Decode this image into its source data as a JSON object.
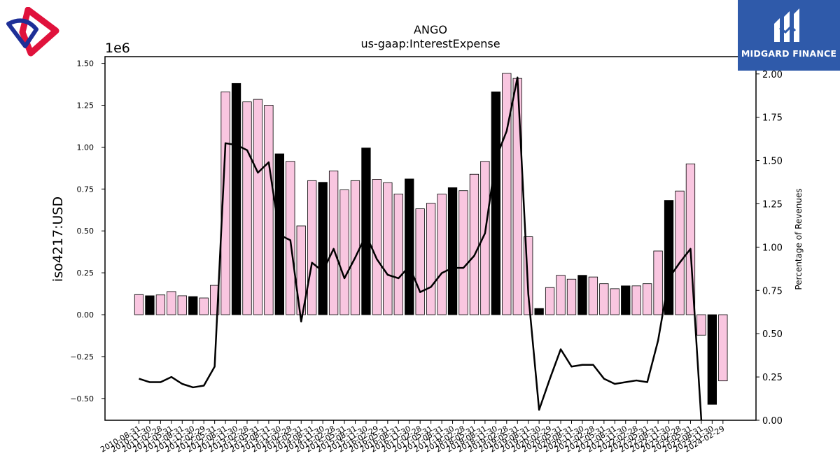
{
  "chart_data": {
    "type": "bar",
    "title": "ANGO",
    "subtitle": "us-gaap:InterestExpense",
    "ylabel": "iso4217:USD",
    "y2label": "Percentage of Revenues",
    "offset_label": "1e6",
    "ylim": [
      -0.63,
      1.54
    ],
    "y2lim": [
      0.0,
      2.1
    ],
    "yticks": [
      "1.50",
      "1.25",
      "1.00",
      "0.75",
      "0.50",
      "0.25",
      "0.00",
      "−0.25",
      "−0.50"
    ],
    "y2ticks": [
      "2.00",
      "1.75",
      "1.50",
      "1.25",
      "1.00",
      "0.75",
      "0.50",
      "0.25",
      "0.00"
    ],
    "categories": [
      "2010-08-31",
      "2010-11-30",
      "2011-02-28",
      "2011-05-31",
      "2011-08-31",
      "2011-11-30",
      "2012-02-29",
      "2012-05-31",
      "2012-08-31",
      "2012-11-30",
      "2013-02-28",
      "2013-05-31",
      "2013-08-31",
      "2013-11-30",
      "2014-02-28",
      "2014-05-31",
      "2014-08-31",
      "2014-11-30",
      "2015-02-28",
      "2015-05-31",
      "2015-08-31",
      "2015-11-30",
      "2016-02-29",
      "2016-05-31",
      "2016-08-31",
      "2016-11-30",
      "2017-02-28",
      "2017-05-31",
      "2017-08-31",
      "2017-11-30",
      "2018-02-28",
      "2018-05-31",
      "2018-08-31",
      "2018-11-30",
      "2019-02-28",
      "2019-05-31",
      "2019-08-31",
      "2019-11-30",
      "2020-02-29",
      "2020-05-31",
      "2020-08-31",
      "2020-11-30",
      "2021-02-28",
      "2021-05-31",
      "2021-08-31",
      "2021-11-30",
      "2022-02-28",
      "2022-05-31",
      "2022-08-31",
      "2022-11-30",
      "2023-02-28",
      "2023-05-31",
      "2023-08-31",
      "2023-11-30",
      "2024-02-29"
    ],
    "xtick_labels": [
      "2010-08-31",
      "2010-11-30",
      "2011-02-28",
      "2011-05-31",
      "2011-08-31",
      "2011-11-30",
      "2012-02-29",
      "2012-05-31",
      "2012-08-31",
      "2012-11-30",
      "2013-02-28",
      "2013-05-31",
      "2013-08-31",
      "2013-11-30",
      "2014-02-28",
      "2014-05-31",
      "2014-08-31",
      "2014-11-30",
      "2015-02-28",
      "2015-05-31",
      "2015-08-31",
      "2015-11-30",
      "2016-02-29",
      "2016-05-31",
      "2016-08-31",
      "2016-11-30",
      "2017-02-28",
      "2017-05-31",
      "2017-08-31",
      "2017-11-30",
      "2018-02-28",
      "2018-05-31",
      "2018-08-31",
      "2018-11-30",
      "2019-02-28",
      "2019-05-31",
      "2019-08-31",
      "2019-11-30",
      "2020-02-29",
      "2020-05-31",
      "2020-08-31",
      "2020-11-30",
      "2021-02-28",
      "2021-05-31",
      "2021-08-31",
      "2021-11-30",
      "2022-02-28",
      "2022-05-31",
      "2022-08-31",
      "2022-11-30",
      "2023-02-28",
      "2023-05-31",
      "2023-08-31",
      "2023-11-30",
      "2024-02-29"
    ],
    "series": [
      {
        "axis": "left",
        "kind": "bar",
        "values": [
          0.12,
          0.113,
          0.118,
          0.138,
          0.113,
          0.108,
          0.1,
          0.175,
          1.33,
          1.38,
          1.27,
          1.285,
          1.25,
          0.96,
          0.915,
          0.53,
          0.8,
          0.79,
          0.858,
          0.745,
          0.8,
          0.995,
          0.808,
          0.788,
          0.72,
          0.81,
          0.632,
          0.665,
          0.72,
          0.758,
          0.74,
          0.838,
          0.915,
          1.33,
          1.44,
          1.41,
          0.465,
          0.037,
          0.162,
          0.235,
          0.212,
          0.235,
          0.225,
          0.185,
          0.155,
          0.172,
          0.172,
          0.185,
          0.38,
          0.682,
          0.738,
          0.9,
          -0.122,
          -0.535,
          -0.395
        ],
        "highlight": [
          false,
          true,
          false,
          false,
          false,
          true,
          false,
          false,
          false,
          true,
          false,
          false,
          false,
          true,
          false,
          false,
          false,
          true,
          false,
          false,
          false,
          true,
          false,
          false,
          false,
          true,
          false,
          false,
          false,
          true,
          false,
          false,
          false,
          true,
          false,
          false,
          false,
          true,
          false,
          false,
          false,
          true,
          false,
          false,
          false,
          true,
          false,
          false,
          false,
          true,
          false,
          false,
          false,
          true,
          false
        ]
      },
      {
        "axis": "right",
        "kind": "line",
        "values": [
          0.24,
          0.22,
          0.22,
          0.25,
          0.21,
          0.19,
          0.2,
          0.31,
          1.6,
          1.59,
          1.56,
          1.43,
          1.49,
          1.07,
          1.04,
          0.57,
          0.91,
          0.86,
          0.99,
          0.82,
          0.94,
          1.07,
          0.93,
          0.84,
          0.82,
          0.89,
          0.74,
          0.77,
          0.85,
          0.88,
          0.88,
          0.95,
          1.08,
          1.51,
          1.67,
          1.98,
          0.73,
          0.06,
          0.24,
          0.41,
          0.31,
          0.32,
          0.32,
          0.24,
          0.21,
          0.22,
          0.23,
          0.22,
          0.46,
          0.82,
          0.91,
          0.99,
          0.0,
          null,
          null
        ]
      }
    ],
    "colors": {
      "bar_fill": "#f9c6e0",
      "bar_highlight": "#000000",
      "line": "#000000",
      "brand_box": "#2f5aaa",
      "logo_red": "#e0123c",
      "logo_blue": "#1e2f97"
    },
    "grid": false,
    "legend": "none"
  },
  "brand": {
    "name": "MIDGARD FINANCE",
    "logo_icon": "midgard-m-logo",
    "left_logo_icon": "interlocked-shapes-logo"
  }
}
